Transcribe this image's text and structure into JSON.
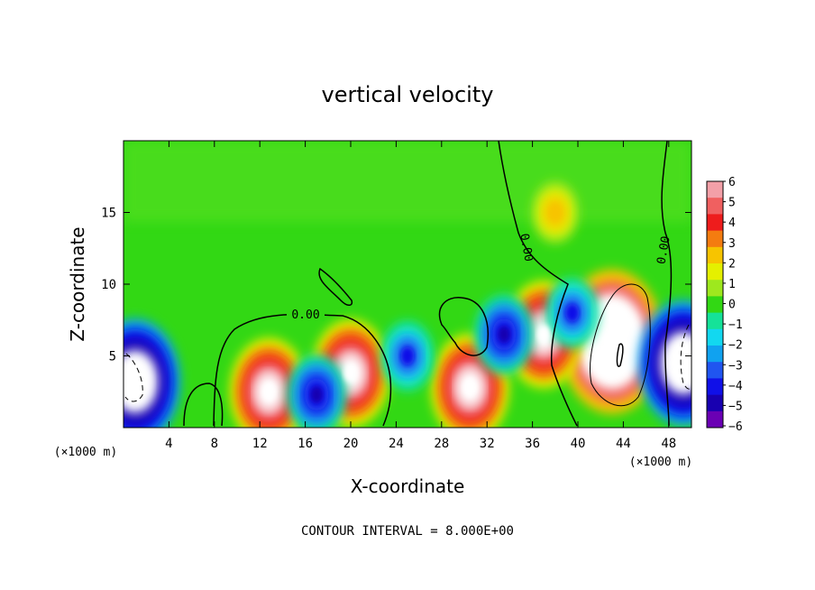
{
  "chart_data": {
    "type": "heatmap",
    "title": "vertical velocity",
    "xlabel": "X-coordinate",
    "ylabel": "Z-coordinate",
    "x_unit": "(×1000 m)",
    "x_unit_right": "(×1000 m)",
    "footer": "CONTOUR INTERVAL = 8.000E+00",
    "xlim": [
      0,
      50
    ],
    "ylim": [
      0,
      20
    ],
    "x_ticks": [
      4,
      8,
      12,
      16,
      20,
      24,
      28,
      32,
      36,
      40,
      44,
      48
    ],
    "y_ticks": [
      5,
      10,
      15
    ],
    "colorbar": {
      "labels": [
        "6",
        "5",
        "4",
        "3",
        "2",
        "1",
        "0",
        "−1",
        "−2",
        "−3",
        "−4",
        "−5",
        "−6"
      ],
      "colors": [
        "#f3a0a8",
        "#f06060",
        "#ee1c1c",
        "#f47c10",
        "#f7c400",
        "#e5f000",
        "#9ee81e",
        "#32d814",
        "#15e298",
        "#12d8f0",
        "#10a2f0",
        "#2055f0",
        "#1010e8",
        "#1800b0",
        "#6a00b4"
      ],
      "range": [
        -6,
        6
      ]
    },
    "background_value": 0.3,
    "zero_contour_label": "0.00",
    "features": [
      {
        "x": 43,
        "y": 6,
        "value": 12,
        "kind": "updraft"
      },
      {
        "x": 37,
        "y": 6.5,
        "value": 8,
        "kind": "updraft"
      },
      {
        "x": 30.5,
        "y": 2.8,
        "value": 8,
        "kind": "updraft"
      },
      {
        "x": 12.8,
        "y": 2.5,
        "value": 8,
        "kind": "updraft"
      },
      {
        "x": 20,
        "y": 3.8,
        "value": 8,
        "kind": "updraft"
      },
      {
        "x": 1,
        "y": 3.2,
        "value": -10,
        "kind": "downdraft"
      },
      {
        "x": 49.3,
        "y": 4.5,
        "value": -10,
        "kind": "downdraft"
      },
      {
        "x": 33.5,
        "y": 6.5,
        "value": -5,
        "kind": "downdraft"
      },
      {
        "x": 17,
        "y": 2.3,
        "value": -5,
        "kind": "downdraft"
      },
      {
        "x": 25,
        "y": 5,
        "value": -4,
        "kind": "downdraft"
      },
      {
        "x": 39.5,
        "y": 8,
        "value": -4,
        "kind": "downdraft"
      },
      {
        "x": 38,
        "y": 15,
        "value": 3,
        "kind": "updraft"
      }
    ]
  }
}
